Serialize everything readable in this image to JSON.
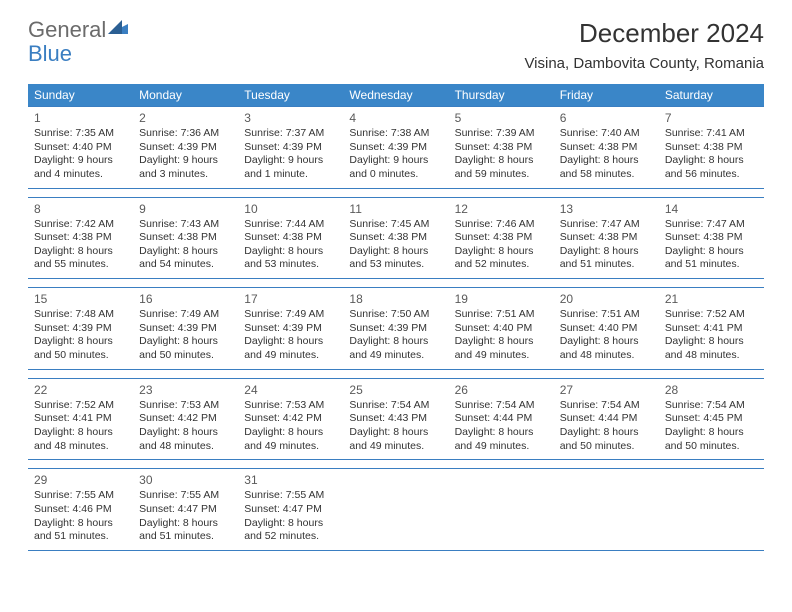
{
  "logo": {
    "text1": "General",
    "text2": "Blue"
  },
  "title": "December 2024",
  "location": "Visina, Dambovita County, Romania",
  "colors": {
    "header_bg": "#3a86c8",
    "rule": "#3a7ec1",
    "text": "#333333",
    "logo_gray": "#6b6b6b",
    "logo_blue": "#3a7ec1",
    "background": "#ffffff"
  },
  "dayNames": [
    "Sunday",
    "Monday",
    "Tuesday",
    "Wednesday",
    "Thursday",
    "Friday",
    "Saturday"
  ],
  "weeks": [
    [
      {
        "n": "1",
        "sr": "Sunrise: 7:35 AM",
        "ss": "Sunset: 4:40 PM",
        "d1": "Daylight: 9 hours",
        "d2": "and 4 minutes."
      },
      {
        "n": "2",
        "sr": "Sunrise: 7:36 AM",
        "ss": "Sunset: 4:39 PM",
        "d1": "Daylight: 9 hours",
        "d2": "and 3 minutes."
      },
      {
        "n": "3",
        "sr": "Sunrise: 7:37 AM",
        "ss": "Sunset: 4:39 PM",
        "d1": "Daylight: 9 hours",
        "d2": "and 1 minute."
      },
      {
        "n": "4",
        "sr": "Sunrise: 7:38 AM",
        "ss": "Sunset: 4:39 PM",
        "d1": "Daylight: 9 hours",
        "d2": "and 0 minutes."
      },
      {
        "n": "5",
        "sr": "Sunrise: 7:39 AM",
        "ss": "Sunset: 4:38 PM",
        "d1": "Daylight: 8 hours",
        "d2": "and 59 minutes."
      },
      {
        "n": "6",
        "sr": "Sunrise: 7:40 AM",
        "ss": "Sunset: 4:38 PM",
        "d1": "Daylight: 8 hours",
        "d2": "and 58 minutes."
      },
      {
        "n": "7",
        "sr": "Sunrise: 7:41 AM",
        "ss": "Sunset: 4:38 PM",
        "d1": "Daylight: 8 hours",
        "d2": "and 56 minutes."
      }
    ],
    [
      {
        "n": "8",
        "sr": "Sunrise: 7:42 AM",
        "ss": "Sunset: 4:38 PM",
        "d1": "Daylight: 8 hours",
        "d2": "and 55 minutes."
      },
      {
        "n": "9",
        "sr": "Sunrise: 7:43 AM",
        "ss": "Sunset: 4:38 PM",
        "d1": "Daylight: 8 hours",
        "d2": "and 54 minutes."
      },
      {
        "n": "10",
        "sr": "Sunrise: 7:44 AM",
        "ss": "Sunset: 4:38 PM",
        "d1": "Daylight: 8 hours",
        "d2": "and 53 minutes."
      },
      {
        "n": "11",
        "sr": "Sunrise: 7:45 AM",
        "ss": "Sunset: 4:38 PM",
        "d1": "Daylight: 8 hours",
        "d2": "and 53 minutes."
      },
      {
        "n": "12",
        "sr": "Sunrise: 7:46 AM",
        "ss": "Sunset: 4:38 PM",
        "d1": "Daylight: 8 hours",
        "d2": "and 52 minutes."
      },
      {
        "n": "13",
        "sr": "Sunrise: 7:47 AM",
        "ss": "Sunset: 4:38 PM",
        "d1": "Daylight: 8 hours",
        "d2": "and 51 minutes."
      },
      {
        "n": "14",
        "sr": "Sunrise: 7:47 AM",
        "ss": "Sunset: 4:38 PM",
        "d1": "Daylight: 8 hours",
        "d2": "and 51 minutes."
      }
    ],
    [
      {
        "n": "15",
        "sr": "Sunrise: 7:48 AM",
        "ss": "Sunset: 4:39 PM",
        "d1": "Daylight: 8 hours",
        "d2": "and 50 minutes."
      },
      {
        "n": "16",
        "sr": "Sunrise: 7:49 AM",
        "ss": "Sunset: 4:39 PM",
        "d1": "Daylight: 8 hours",
        "d2": "and 50 minutes."
      },
      {
        "n": "17",
        "sr": "Sunrise: 7:49 AM",
        "ss": "Sunset: 4:39 PM",
        "d1": "Daylight: 8 hours",
        "d2": "and 49 minutes."
      },
      {
        "n": "18",
        "sr": "Sunrise: 7:50 AM",
        "ss": "Sunset: 4:39 PM",
        "d1": "Daylight: 8 hours",
        "d2": "and 49 minutes."
      },
      {
        "n": "19",
        "sr": "Sunrise: 7:51 AM",
        "ss": "Sunset: 4:40 PM",
        "d1": "Daylight: 8 hours",
        "d2": "and 49 minutes."
      },
      {
        "n": "20",
        "sr": "Sunrise: 7:51 AM",
        "ss": "Sunset: 4:40 PM",
        "d1": "Daylight: 8 hours",
        "d2": "and 48 minutes."
      },
      {
        "n": "21",
        "sr": "Sunrise: 7:52 AM",
        "ss": "Sunset: 4:41 PM",
        "d1": "Daylight: 8 hours",
        "d2": "and 48 minutes."
      }
    ],
    [
      {
        "n": "22",
        "sr": "Sunrise: 7:52 AM",
        "ss": "Sunset: 4:41 PM",
        "d1": "Daylight: 8 hours",
        "d2": "and 48 minutes."
      },
      {
        "n": "23",
        "sr": "Sunrise: 7:53 AM",
        "ss": "Sunset: 4:42 PM",
        "d1": "Daylight: 8 hours",
        "d2": "and 48 minutes."
      },
      {
        "n": "24",
        "sr": "Sunrise: 7:53 AM",
        "ss": "Sunset: 4:42 PM",
        "d1": "Daylight: 8 hours",
        "d2": "and 49 minutes."
      },
      {
        "n": "25",
        "sr": "Sunrise: 7:54 AM",
        "ss": "Sunset: 4:43 PM",
        "d1": "Daylight: 8 hours",
        "d2": "and 49 minutes."
      },
      {
        "n": "26",
        "sr": "Sunrise: 7:54 AM",
        "ss": "Sunset: 4:44 PM",
        "d1": "Daylight: 8 hours",
        "d2": "and 49 minutes."
      },
      {
        "n": "27",
        "sr": "Sunrise: 7:54 AM",
        "ss": "Sunset: 4:44 PM",
        "d1": "Daylight: 8 hours",
        "d2": "and 50 minutes."
      },
      {
        "n": "28",
        "sr": "Sunrise: 7:54 AM",
        "ss": "Sunset: 4:45 PM",
        "d1": "Daylight: 8 hours",
        "d2": "and 50 minutes."
      }
    ],
    [
      {
        "n": "29",
        "sr": "Sunrise: 7:55 AM",
        "ss": "Sunset: 4:46 PM",
        "d1": "Daylight: 8 hours",
        "d2": "and 51 minutes."
      },
      {
        "n": "30",
        "sr": "Sunrise: 7:55 AM",
        "ss": "Sunset: 4:47 PM",
        "d1": "Daylight: 8 hours",
        "d2": "and 51 minutes."
      },
      {
        "n": "31",
        "sr": "Sunrise: 7:55 AM",
        "ss": "Sunset: 4:47 PM",
        "d1": "Daylight: 8 hours",
        "d2": "and 52 minutes."
      },
      null,
      null,
      null,
      null
    ]
  ]
}
